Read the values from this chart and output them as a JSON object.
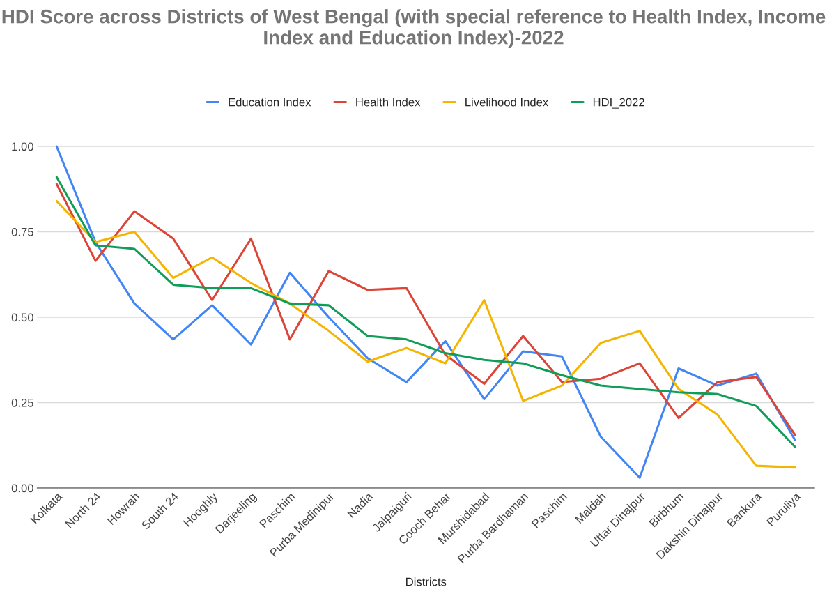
{
  "chart_data": {
    "type": "line",
    "title": "HDI Score across Districts of West Bengal (with special reference to Health Index, Income Index and Education Index)-2022",
    "xlabel": "Districts",
    "categories": [
      "Kolkata",
      "North 24",
      "Howrah",
      "South 24",
      "Hooghly",
      "Darjeeling",
      "Paschim",
      "Purba Medinipur",
      "Nadia",
      "Jalpaiguri",
      "Cooch Behar",
      "Murshidabad",
      "Purba Bardhaman",
      "Paschim",
      "Maldah",
      "Uttar Dinajpur",
      "Birbhum",
      "Dakshin Dinajpur",
      "Bankura",
      "Puruliya"
    ],
    "series": [
      {
        "name": "Education Index",
        "color": "#4285f4",
        "values": [
          1.0,
          0.72,
          0.54,
          0.435,
          0.535,
          0.42,
          0.63,
          0.5,
          0.38,
          0.31,
          0.43,
          0.26,
          0.4,
          0.385,
          0.15,
          0.03,
          0.35,
          0.3,
          0.335,
          0.14
        ]
      },
      {
        "name": "Health Index",
        "color": "#db4437",
        "values": [
          0.89,
          0.665,
          0.81,
          0.73,
          0.55,
          0.73,
          0.435,
          0.635,
          0.58,
          0.585,
          0.39,
          0.305,
          0.445,
          0.31,
          0.32,
          0.365,
          0.205,
          0.31,
          0.325,
          0.155
        ]
      },
      {
        "name": "Livelihood Index",
        "color": "#f4b400",
        "values": [
          0.84,
          0.72,
          0.75,
          0.615,
          0.675,
          0.6,
          0.54,
          0.46,
          0.37,
          0.41,
          0.365,
          0.55,
          0.255,
          0.3,
          0.425,
          0.46,
          0.29,
          0.215,
          0.065,
          0.06
        ]
      },
      {
        "name": "HDI_2022",
        "color": "#0f9d58",
        "values": [
          0.91,
          0.71,
          0.7,
          0.595,
          0.585,
          0.585,
          0.54,
          0.535,
          0.445,
          0.435,
          0.395,
          0.375,
          0.365,
          0.33,
          0.3,
          0.29,
          0.28,
          0.275,
          0.24,
          0.12
        ]
      }
    ],
    "ylim": [
      0,
      1.0
    ],
    "yticks": [
      {
        "value": 0,
        "label": "0.00"
      },
      {
        "value": 0.25,
        "label": "0.25"
      },
      {
        "value": 0.5,
        "label": "0.50"
      },
      {
        "value": 0.75,
        "label": "0.75"
      },
      {
        "value": 1.0,
        "label": "1.00"
      }
    ],
    "grid": "y",
    "legend": "top",
    "marker": "none",
    "line_style": "solid"
  }
}
